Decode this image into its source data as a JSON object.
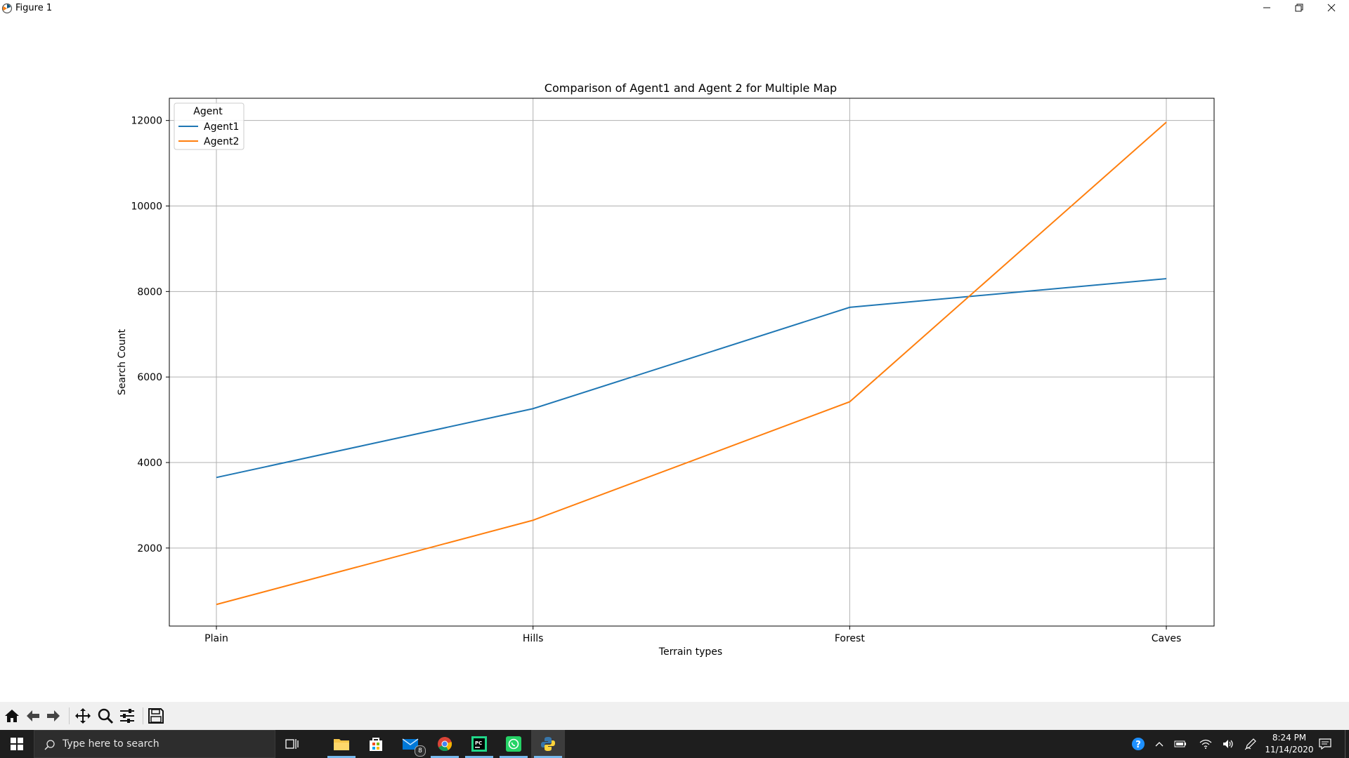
{
  "window": {
    "title": "Figure 1",
    "controls": [
      "minimize",
      "restore",
      "close"
    ]
  },
  "chart_data": {
    "type": "line",
    "title": "Comparison of Agent1 and Agent 2 for Multiple Map",
    "xlabel": "Terrain types",
    "ylabel": "Search Count",
    "categories": [
      "Plain",
      "Hills",
      "Forest",
      "Caves"
    ],
    "yticks": [
      "2000",
      "4000",
      "6000",
      "8000",
      "10000",
      "12000"
    ],
    "ylim": [
      175,
      12520
    ],
    "grid": true,
    "legend": {
      "title": "Agent",
      "placement": "top-left"
    },
    "series": [
      {
        "name": "Agent1",
        "color": "#1f77b4",
        "values": [
          3650,
          5260,
          7630,
          8300
        ]
      },
      {
        "name": "Agent2",
        "color": "#ff7f0e",
        "values": [
          680,
          2650,
          5420,
          11960
        ]
      }
    ]
  },
  "toolbar": {
    "buttons": [
      "home-icon",
      "back-icon",
      "forward-icon",
      "pan-icon",
      "zoom-icon",
      "configure-icon",
      "save-icon"
    ]
  },
  "taskbar": {
    "search_placeholder": "Type here to search",
    "mail_badge": "8",
    "time": "8:24 PM",
    "date": "11/14/2020"
  }
}
